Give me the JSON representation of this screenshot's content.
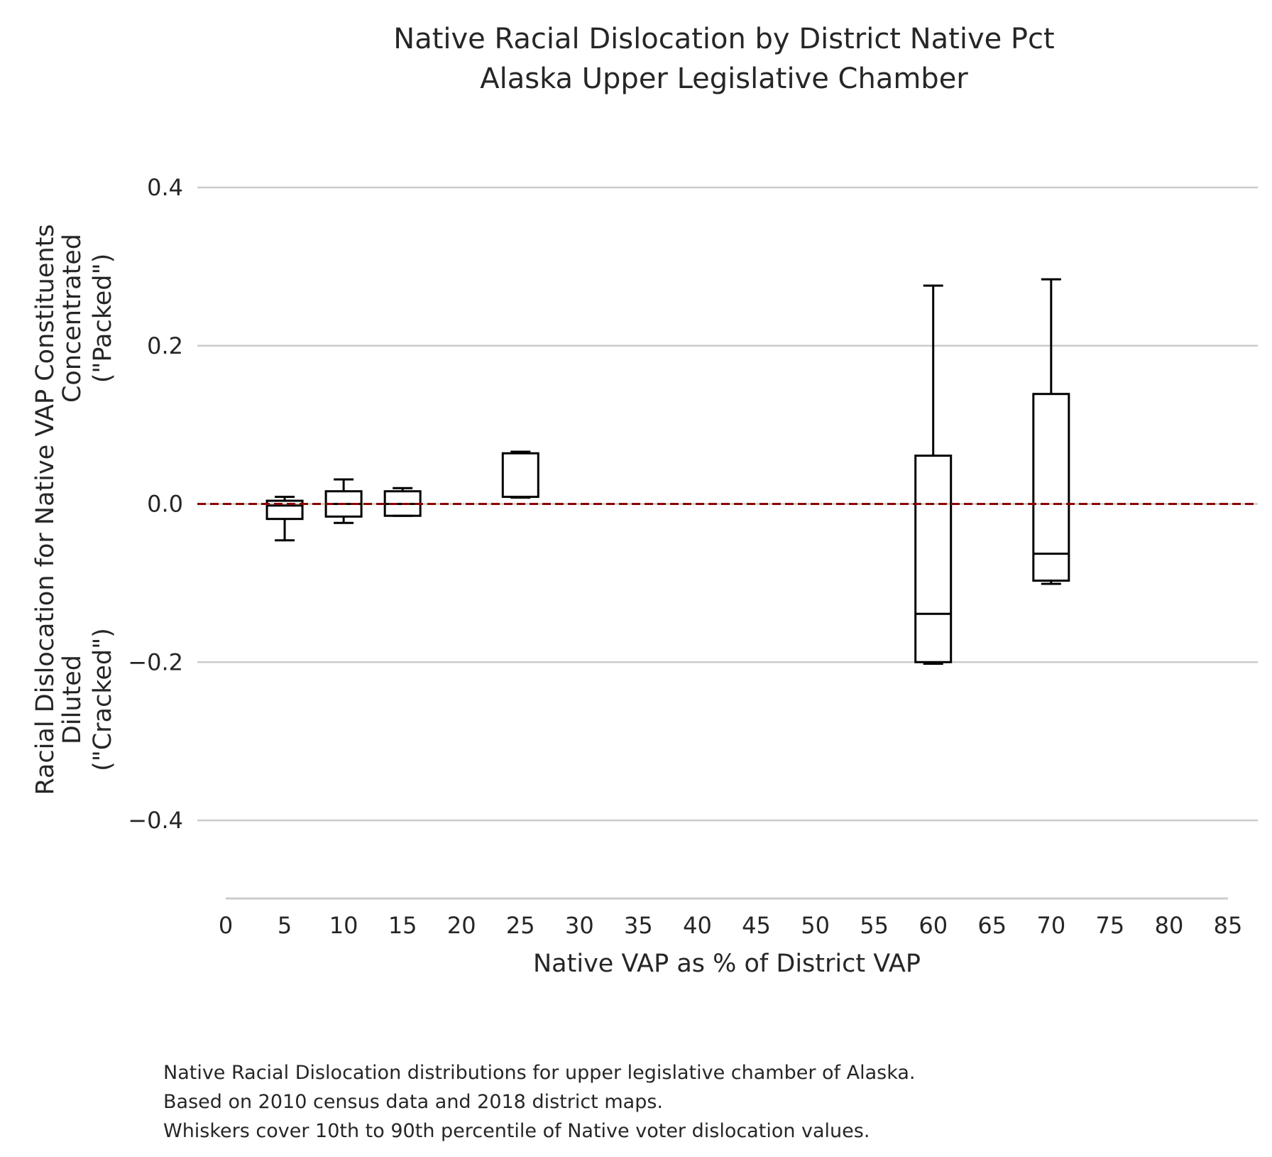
{
  "chart_data": {
    "type": "box",
    "title_lines": [
      "Native Racial Dislocation by District Native Pct",
      "Alaska Upper Legislative Chamber"
    ],
    "xlabel": "Native VAP as % of District VAP",
    "ylabel_lines": [
      "Racial Dislocation for Native VAP Constituents",
      "Diluted",
      "(\"Cracked\")",
      "Concentrated",
      "(\"Packed\")"
    ],
    "xlim": [
      0,
      85
    ],
    "ylim": [
      -0.5,
      0.45
    ],
    "x_ticks": [
      0,
      5,
      10,
      15,
      20,
      25,
      30,
      35,
      40,
      45,
      50,
      55,
      60,
      65,
      70,
      75,
      80,
      85
    ],
    "y_ticks": [
      -0.4,
      -0.2,
      0.0,
      0.2,
      0.4
    ],
    "y_tick_labels": [
      "−0.4",
      "−0.2",
      "0.0",
      "0.2",
      "0.4"
    ],
    "reference_line": {
      "y": 0.0,
      "style": "dashed",
      "color": "#8b0000"
    },
    "grid": "horizontal",
    "box_color": "#000000",
    "boxes": [
      {
        "x": 5,
        "whisker_low": -0.046,
        "q1": -0.019,
        "median": -0.002,
        "q3": 0.004,
        "whisker_high": 0.009
      },
      {
        "x": 10,
        "whisker_low": -0.024,
        "q1": -0.016,
        "median": 0.0,
        "q3": 0.016,
        "whisker_high": 0.031
      },
      {
        "x": 15,
        "whisker_low": -0.015,
        "q1": -0.015,
        "median": 0.0,
        "q3": 0.016,
        "whisker_high": 0.02
      },
      {
        "x": 25,
        "whisker_low": 0.008,
        "q1": 0.009,
        "median": 0.009,
        "q3": 0.064,
        "whisker_high": 0.066
      },
      {
        "x": 60,
        "whisker_low": -0.202,
        "q1": -0.2,
        "median": -0.139,
        "q3": 0.061,
        "whisker_high": 0.276
      },
      {
        "x": 70,
        "whisker_low": -0.101,
        "q1": -0.097,
        "median": -0.063,
        "q3": 0.139,
        "whisker_high": 0.284
      }
    ]
  },
  "caption": [
    "Native Racial Dislocation distributions for upper legislative chamber of Alaska.",
    "Based on 2010 census data and 2018 district maps.",
    "Whiskers cover 10th to 90th percentile of Native voter dislocation values."
  ]
}
